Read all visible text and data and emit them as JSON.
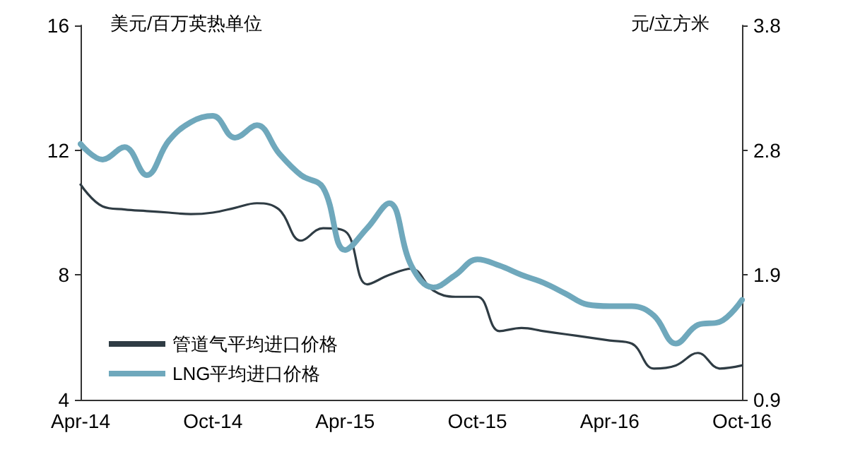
{
  "chart_data": {
    "type": "line",
    "ylabel": "美元/百万英热单位",
    "y2label": "元/立方米",
    "categories": [
      "Apr-14",
      null,
      null,
      null,
      null,
      null,
      "Oct-14",
      null,
      null,
      null,
      null,
      null,
      "Apr-15",
      null,
      null,
      null,
      null,
      null,
      "Oct-15",
      null,
      null,
      null,
      null,
      null,
      "Apr-16",
      null,
      null,
      null,
      null,
      null,
      "Oct-16"
    ],
    "series": [
      {
        "name": "管道气平均进口价格",
        "color": "#2f3c44",
        "values": [
          10.9,
          10.2,
          10.1,
          10.05,
          10.0,
          9.95,
          10.0,
          10.15,
          10.3,
          10.1,
          9.1,
          9.5,
          9.4,
          7.7,
          8.0,
          8.2,
          7.5,
          7.3,
          7.3,
          6.2,
          6.3,
          6.2,
          6.1,
          6.0,
          5.9,
          5.8,
          5.0,
          5.1,
          5.5,
          5.0,
          5.1
        ]
      },
      {
        "name": "LNG平均进口价格",
        "color": "#6fa8bc",
        "values": [
          12.2,
          11.7,
          12.1,
          11.2,
          12.3,
          12.9,
          13.1,
          12.4,
          12.8,
          11.9,
          11.2,
          10.8,
          8.8,
          9.5,
          10.3,
          8.3,
          7.6,
          8.0,
          8.5,
          8.3,
          8.0,
          7.75,
          7.4,
          7.05,
          7.0,
          7.0,
          6.7,
          5.8,
          6.4,
          6.5,
          7.2
        ]
      }
    ],
    "ylim": [
      4,
      16
    ],
    "yticks": [
      4,
      8,
      12,
      16
    ],
    "y2lim": [
      0.9,
      3.8
    ],
    "y2ticks": [
      0.9,
      {
        "value": 1.8667,
        "label": "1.9"
      },
      {
        "value": 2.8333,
        "label": "2.8"
      },
      3.8
    ],
    "grid": false,
    "legend": "bottom left",
    "marker": "none",
    "line_style": "solid"
  }
}
